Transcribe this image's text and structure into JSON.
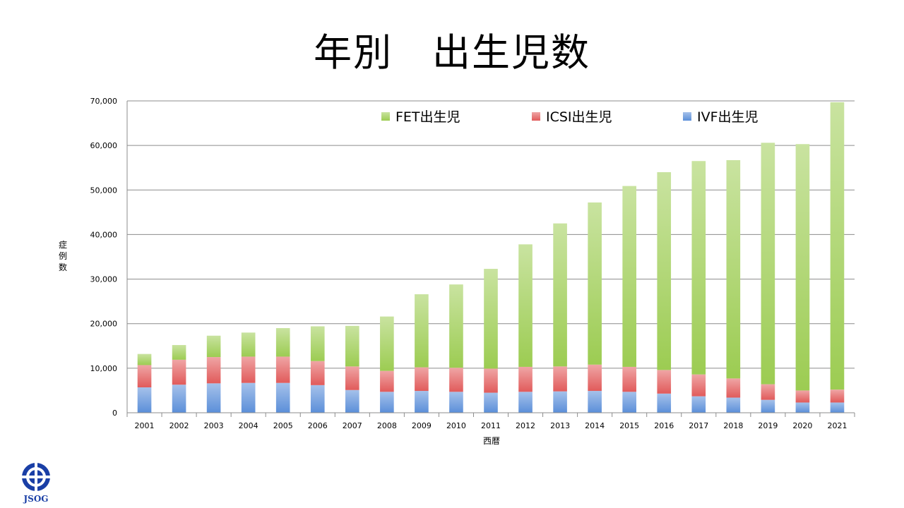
{
  "slide": {
    "title": "年別　出生児数"
  },
  "logo": {
    "text": "JSOG"
  },
  "chart_data": {
    "type": "bar",
    "stacked": true,
    "title": "",
    "xlabel": "西暦",
    "ylabel": "症例数",
    "ylim": [
      0,
      70000
    ],
    "yticks": [
      "0",
      "10,000",
      "20,000",
      "30,000",
      "40,000",
      "50,000",
      "60,000",
      "70,000"
    ],
    "grid": true,
    "legend_position": "top",
    "categories": [
      "2001",
      "2002",
      "2003",
      "2004",
      "2005",
      "2006",
      "2007",
      "2008",
      "2009",
      "2010",
      "2011",
      "2012",
      "2013",
      "2014",
      "2015",
      "2016",
      "2017",
      "2018",
      "2019",
      "2020",
      "2021"
    ],
    "series": [
      {
        "name": "IVF出生児",
        "color": "#5b8fd9",
        "values": [
          5700,
          6300,
          6600,
          6700,
          6700,
          6200,
          5100,
          4700,
          4900,
          4700,
          4500,
          4700,
          4800,
          4900,
          4700,
          4300,
          3700,
          3400,
          2900,
          2300,
          2300
        ]
      },
      {
        "name": "ICSI出生児",
        "color": "#e15b5b",
        "values": [
          5000,
          5600,
          5900,
          5900,
          5900,
          5400,
          5300,
          4700,
          5300,
          5400,
          5400,
          5600,
          5600,
          5900,
          5600,
          5300,
          4900,
          4300,
          3500,
          2700,
          2900
        ]
      },
      {
        "name": "FET出生児",
        "color": "#9ccc52",
        "values": [
          2500,
          3300,
          4800,
          5400,
          6400,
          7800,
          9100,
          12200,
          16400,
          18700,
          22400,
          27500,
          32100,
          36400,
          40600,
          44400,
          47900,
          49000,
          54200,
          55300,
          64500
        ]
      }
    ]
  }
}
